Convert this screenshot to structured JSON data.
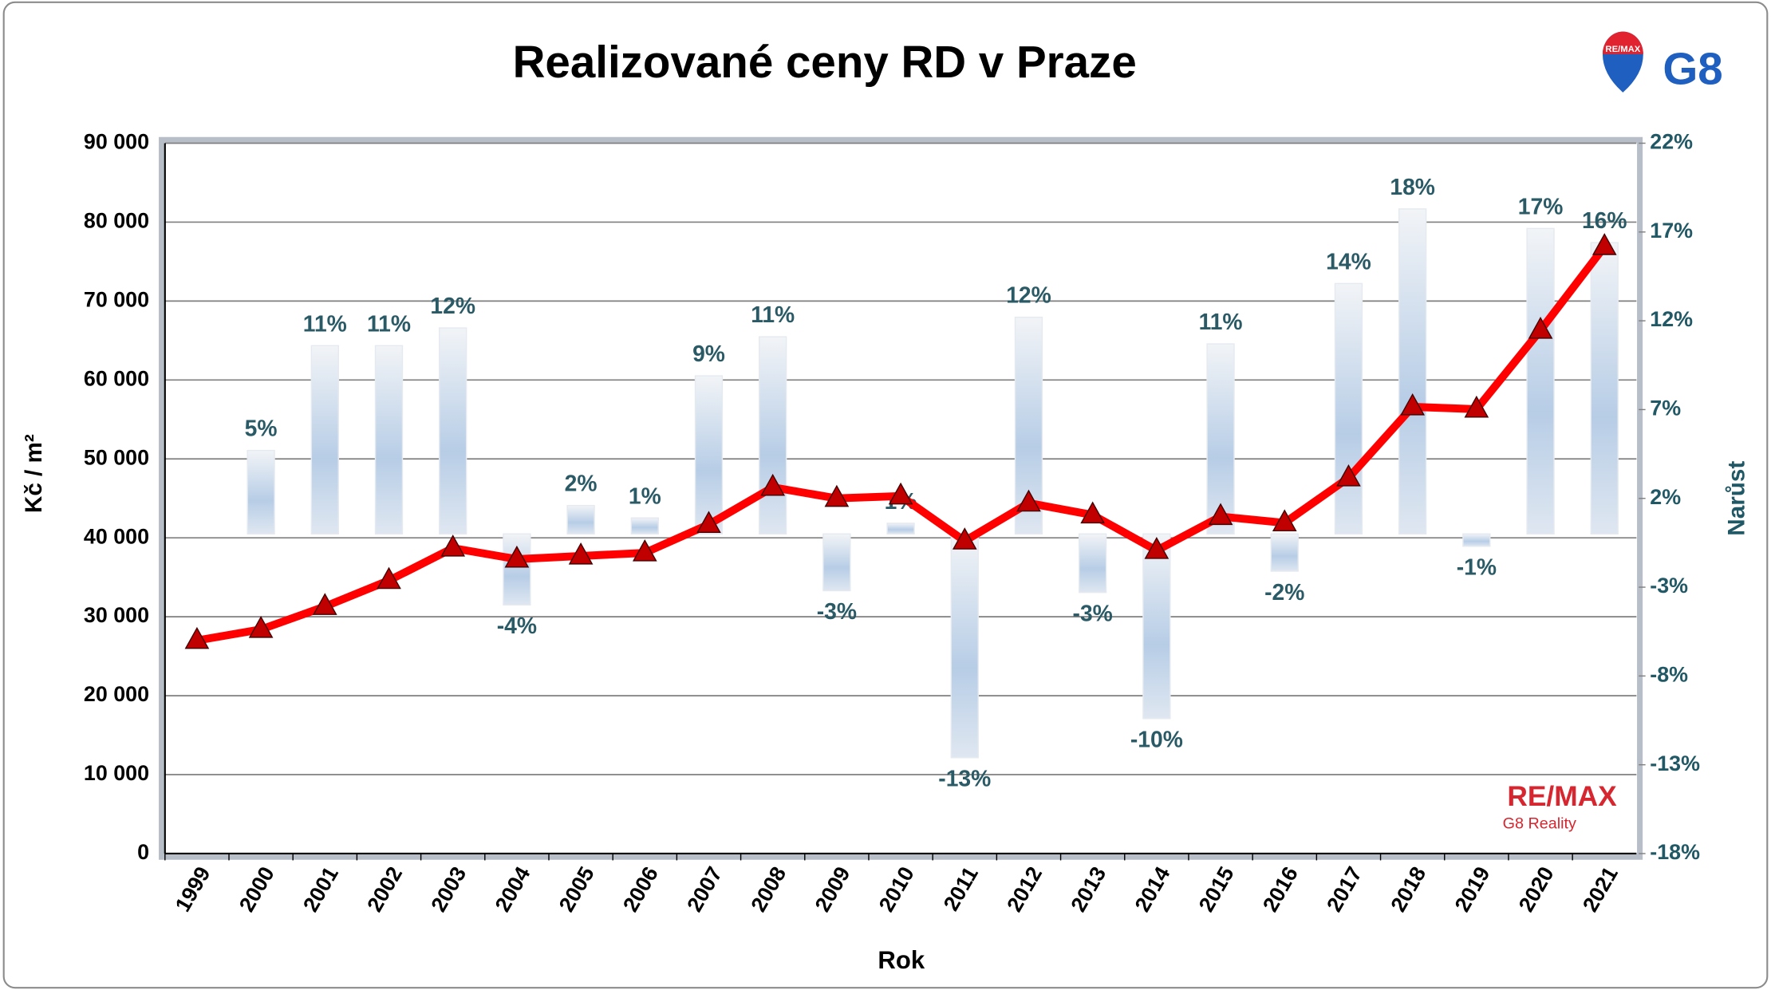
{
  "chart_data": {
    "type": "bar-line",
    "title": "Realizované ceny RD v Praze",
    "xlabel": "Rok",
    "ylabel": "Kč / m²",
    "y2label": "Narůst",
    "logo": {
      "balloon": "RE/MAX",
      "mark": "G8",
      "brand": "RE/MAX",
      "sub": "G8 Reality"
    },
    "categories": [
      "1999",
      "2000",
      "2001",
      "2002",
      "2003",
      "2004",
      "2005",
      "2006",
      "2007",
      "2008",
      "2009",
      "2010",
      "2011",
      "2012",
      "2013",
      "2014",
      "2015",
      "2016",
      "2017",
      "2018",
      "2019",
      "2020",
      "2021"
    ],
    "ylim": [
      0,
      90000
    ],
    "yticks": [
      0,
      {
        "value": 10000,
        "label": "10 000"
      },
      {
        "value": 20000,
        "label": "20 000"
      },
      {
        "value": 30000,
        "label": "30 000"
      },
      {
        "value": 40000,
        "label": "40 000"
      },
      {
        "value": 50000,
        "label": "50 000"
      },
      {
        "value": 60000,
        "label": "60 000"
      },
      {
        "value": 70000,
        "label": "70 000"
      },
      {
        "value": 80000,
        "label": "80 000"
      },
      {
        "value": 90000,
        "label": "90 000"
      }
    ],
    "y2lim": [
      -18,
      22
    ],
    "y2ticks": [
      {
        "value": -18,
        "label": "-18%"
      },
      {
        "value": -13,
        "label": "-13%"
      },
      {
        "value": -8,
        "label": "-8%"
      },
      {
        "value": -3,
        "label": "-3%"
      },
      {
        "value": 2,
        "label": "2%"
      },
      {
        "value": 7,
        "label": "7%"
      },
      {
        "value": 12,
        "label": "12%"
      },
      {
        "value": 17,
        "label": "17%"
      },
      {
        "value": 22,
        "label": "22%"
      }
    ],
    "grid": true,
    "series": [
      {
        "type": "line",
        "color": "#ff0000",
        "marker_color": "#c00000",
        "values": [
          27000,
          28400,
          31300,
          34600,
          38700,
          37300,
          37700,
          38100,
          41700,
          46400,
          45000,
          45300,
          39600,
          44400,
          42900,
          38400,
          42700,
          41900,
          47600,
          56600,
          56300,
          66300,
          76900
        ]
      },
      {
        "type": "bar",
        "axis": "y2",
        "color": "#b7cde6",
        "values": [
          null,
          4.7,
          10.6,
          10.6,
          11.6,
          -4.0,
          1.6,
          0.9,
          8.9,
          11.1,
          -3.2,
          0.6,
          -12.6,
          12.2,
          -3.3,
          -10.4,
          10.7,
          -2.1,
          14.1,
          18.3,
          -0.7,
          17.2,
          16.4
        ],
        "value_labels": [
          null,
          "5%",
          "11%",
          "11%",
          "12%",
          "-4%",
          "2%",
          "1%",
          "9%",
          "11%",
          "-3%",
          "1%",
          "-13%",
          "12%",
          "-3%",
          "-10%",
          "11%",
          "-2%",
          "14%",
          "18%",
          "-1%",
          "17%",
          "16%"
        ]
      }
    ]
  }
}
